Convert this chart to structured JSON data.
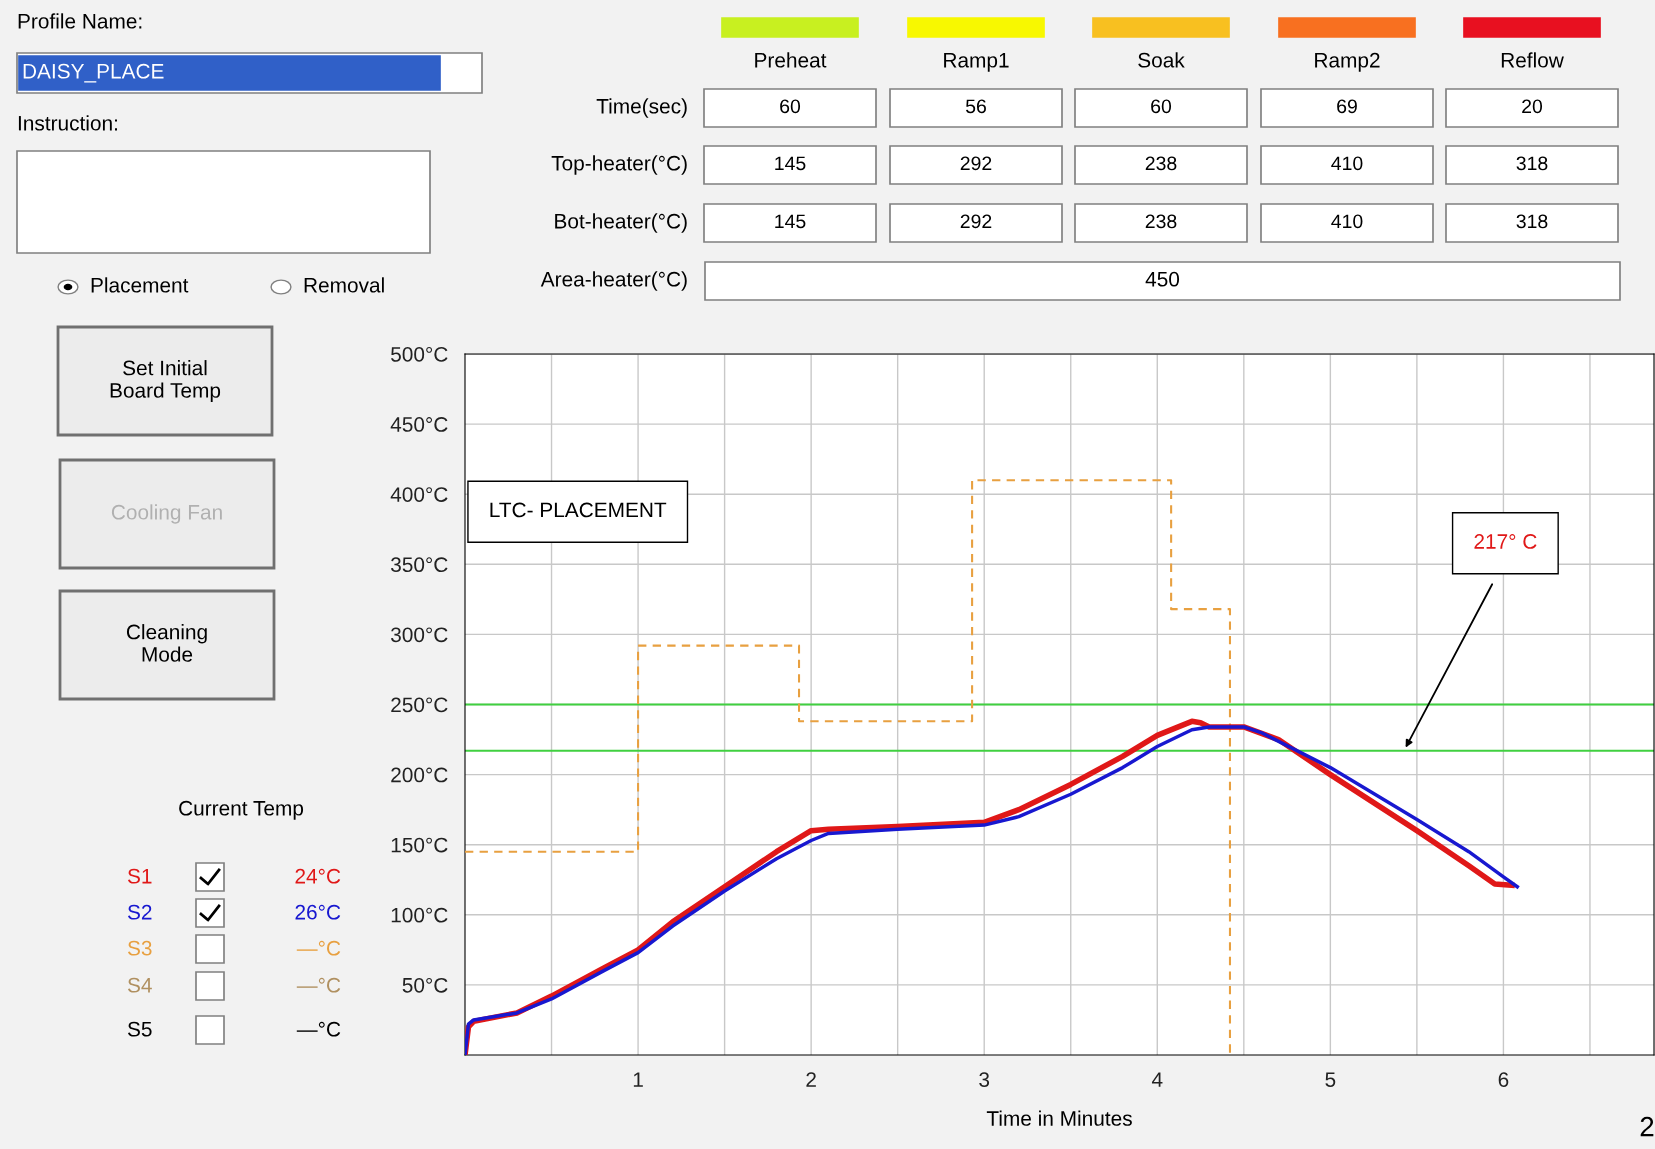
{
  "chart_data": [
    {
      "type": "line",
      "xlabel": "Time in Minutes",
      "xlim": [
        0,
        6.87
      ],
      "ylim": [
        0,
        500
      ],
      "xticks": [
        {
          "value": 0.5,
          "label": null
        },
        1,
        {
          "value": 1.5,
          "label": null
        },
        2,
        {
          "value": 2.5,
          "label": null
        },
        3,
        {
          "value": 3.5,
          "label": null
        },
        4,
        {
          "value": 4.5,
          "label": null
        },
        5,
        {
          "value": 5.5,
          "label": null
        },
        6,
        {
          "value": 6.5,
          "label": null
        }
      ],
      "yticks": [
        {
          "value": 50,
          "label": "50°C"
        },
        {
          "value": 100,
          "label": "100°C"
        },
        {
          "value": 150,
          "label": "150°C"
        },
        {
          "value": 200,
          "label": "200°C"
        },
        {
          "value": 250,
          "label": "250°C"
        },
        {
          "value": 300,
          "label": "300°C"
        },
        {
          "value": 350,
          "label": "350°C"
        },
        {
          "value": 400,
          "label": "400°C"
        },
        {
          "value": 450,
          "label": "450°C"
        },
        {
          "value": 500,
          "label": "500°C"
        }
      ],
      "grid": true,
      "legend": false,
      "series": [
        {
          "type": "step",
          "color": "#e8a040",
          "line_style": "dashed",
          "x": [
            0,
            1.0,
            1.93,
            2.93,
            4.08,
            4.42
          ],
          "values": [
            145,
            292,
            238,
            410,
            318,
            0
          ]
        },
        {
          "name": "S1",
          "color": "#e01818",
          "x": [
            0,
            0.02,
            0.05,
            0.3,
            0.5,
            0.8,
            1.0,
            1.2,
            1.5,
            1.8,
            2.0,
            2.1,
            2.5,
            3.0,
            3.2,
            3.5,
            3.8,
            4.0,
            4.2,
            4.25,
            4.3,
            4.5,
            4.7,
            5.0,
            5.5,
            5.8,
            5.95,
            6.05
          ],
          "values": [
            0,
            20,
            24,
            30,
            42,
            62,
            75,
            95,
            120,
            145,
            160,
            161,
            163,
            166,
            175,
            193,
            213,
            228,
            238,
            237,
            234,
            234,
            225,
            200,
            160,
            135,
            122,
            121
          ]
        },
        {
          "name": "S2",
          "color": "#1818d0",
          "x": [
            0,
            0.02,
            0.05,
            0.3,
            0.5,
            0.8,
            1.0,
            1.2,
            1.5,
            1.8,
            2.0,
            2.1,
            2.5,
            3.0,
            3.2,
            3.5,
            3.8,
            4.0,
            4.2,
            4.3,
            4.5,
            4.6,
            5.0,
            5.5,
            5.8,
            6.0,
            6.08
          ],
          "values": [
            0,
            22,
            25,
            30,
            40,
            60,
            73,
            92,
            117,
            140,
            153,
            158,
            161,
            164,
            170,
            186,
            205,
            220,
            232,
            234,
            234,
            230,
            205,
            168,
            145,
            127,
            120
          ]
        }
      ],
      "ref_lines": [
        {
          "axis": "y",
          "value": 250,
          "color": "#40d040"
        },
        {
          "axis": "y",
          "value": 217,
          "color": "#40d040"
        }
      ],
      "annotations": [
        "LTC- PLACEMENT",
        "217° C"
      ]
    },
    {
      "type": "other",
      "categories": [
        "Preheat",
        "Ramp1",
        "Soak",
        "Ramp2",
        "Reflow"
      ],
      "colors": [
        "#c8f020",
        "#f8f800",
        "#f8c020",
        "#f87020",
        "#e81020"
      ],
      "series": [
        {
          "name": "Time(sec)",
          "values": [
            60,
            56,
            60,
            69,
            20
          ],
          "value_labels": [
            "60",
            "56",
            "60",
            "69",
            "20"
          ]
        },
        {
          "name": "Top-heater(°C)",
          "values": [
            145,
            292,
            238,
            410,
            318
          ],
          "value_labels": [
            "145",
            "292",
            "238",
            "410",
            "318"
          ]
        },
        {
          "name": "Bot-heater(°C)",
          "values": [
            145,
            292,
            238,
            410,
            318
          ],
          "value_labels": [
            "145",
            "292",
            "238",
            "410",
            "318"
          ]
        }
      ],
      "annotations": [
        "Area-heater(°C)",
        "450",
        "Profile Name:",
        "DAISY_PLACE",
        "Instruction:",
        "Placement",
        "Removal",
        "Set Initial\nBoard Temp",
        "Cooling Fan",
        "Cleaning\nMode",
        "Current Temp",
        "24°C",
        "26°C",
        "S3",
        "—°C",
        "S4",
        "—°C",
        "S5",
        "—°C",
        "2"
      ]
    }
  ]
}
